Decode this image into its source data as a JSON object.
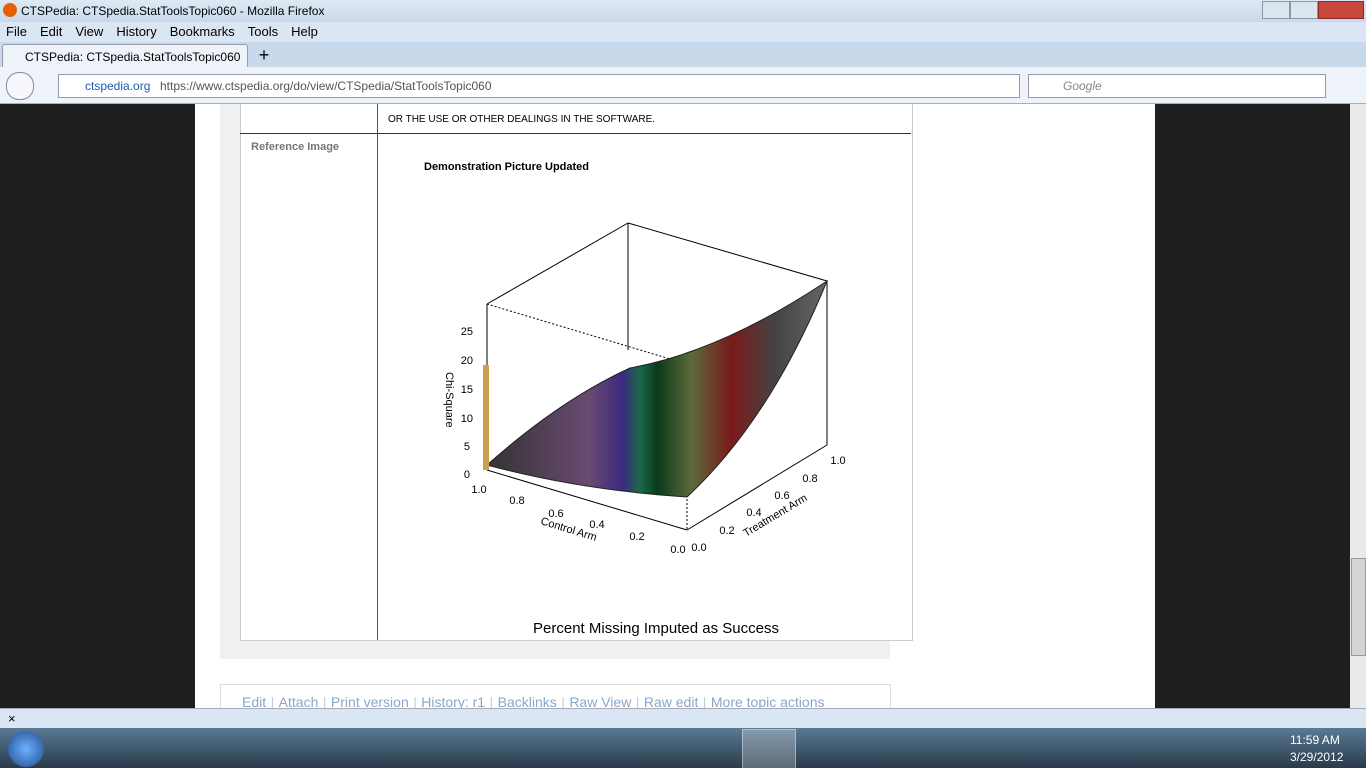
{
  "window": {
    "title": "CTSPedia: CTSpedia.StatToolsTopic060 - Mozilla Firefox"
  },
  "menu": [
    "File",
    "Edit",
    "View",
    "History",
    "Bookmarks",
    "Tools",
    "Help"
  ],
  "tab": {
    "title": "CTSPedia: CTSpedia.StatToolsTopic060"
  },
  "navbar": {
    "site": "ctspedia.org",
    "url": "https://www.ctspedia.org/do/view/CTSpedia/StatToolsTopic060",
    "search": "Google"
  },
  "content": {
    "license_text": "OR THE USE OR OTHER DEALINGS IN THE SOFTWARE.",
    "row_label": "Reference Image",
    "figure": {
      "title": "Demonstration Picture Updated",
      "z_label": "Chi-Square",
      "x_label": "Control Arm",
      "y_label": "Treatment Arm",
      "z_ticks": [
        "0",
        "5",
        "10",
        "15",
        "20",
        "25"
      ],
      "x_ticks": [
        "1.0",
        "0.8",
        "0.6",
        "0.4",
        "0.2",
        "0.0"
      ],
      "y_ticks": [
        "0.0",
        "0.2",
        "0.4",
        "0.6",
        "0.8",
        "1.0"
      ],
      "caption": "Percent Missing Imputed as Success"
    },
    "topic_actions": [
      "Edit",
      "Attach",
      "Print version",
      "History: r1",
      "Backlinks",
      "Raw View",
      "Raw edit",
      "More topic actions"
    ]
  },
  "taskbar": {
    "time": "11:59 AM",
    "date": "3/29/2012"
  }
}
